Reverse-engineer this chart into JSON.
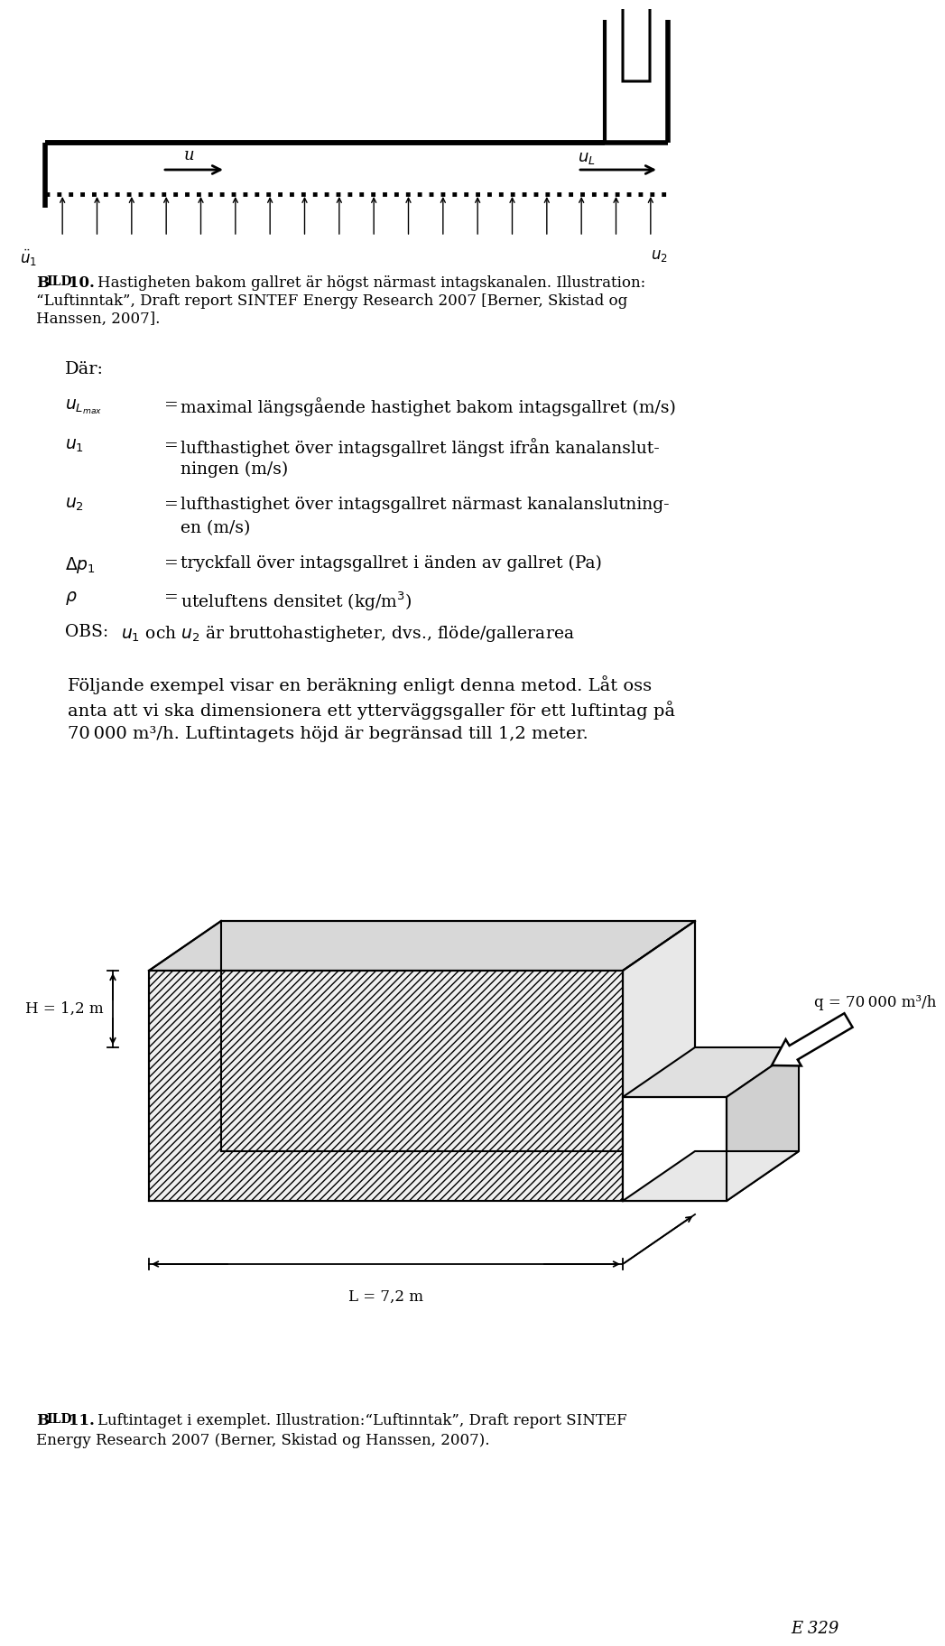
{
  "bg_color": "#ffffff",
  "text_color": "#000000",
  "fig_width": 9.6,
  "fig_height": 18.03,
  "bild10_line1": "Hastigheten bakom gallret är högst närmast intagskanalen. Illustration:",
  "bild10_line2": "“Luftinntak”, Draft report SINTEF Energy Research 2007 [Berner, Skistad og",
  "bild10_line3": "Hanssen, 2007].",
  "dar_text": "Där:",
  "def_ulmax_sym": "$u_{L_{max}}$",
  "def_ulmax_txt": "=maximal längsgående hastighet bakom intagsgallret (m/s)",
  "def_u1_sym": "$u_1$",
  "def_u1_txt1": "=lufthastighet över intagsgallret längst ifrån kanalanslut-",
  "def_u1_txt2": "ningen (m/s)",
  "def_u2_sym": "$u_2$",
  "def_u2_txt1": "=lufthastighet över intagsgallret närmast kanalanslutning-",
  "def_u2_txt2": "en (m/s)",
  "def_dp_sym": "$\\Delta p_1$",
  "def_dp_txt": "=tryckfall över intagsgallret i änden av gallret (Pa)",
  "def_rho_sym": "$\\rho$",
  "def_rho_txt": "=uteluftens densitet (kg/m$^3$)",
  "def_obs_sym": "OBS:",
  "def_obs_txt": "$u_1$ och $u_2$ är bruttohastigheter, dvs., flöde/gallerarea",
  "para_line1": "Följande exempel visar en beräkning enligt denna metod. Låt oss",
  "para_line2": "anta att vi ska dimensionera ett ytterväggsgaller för ett luftintag på",
  "para_line3": "70 000 m³/h. Luftintagets höjd är begränsad till 1,2 meter.",
  "H_label": "H = 1,2 m",
  "L_label": "L = 7,2 m",
  "q_label": "q = 70 000 m³/h",
  "bild11_line1": "Luftintaget i exemplet. Illustration:“Luftinntak”, Draft report SINTEF",
  "bild11_line2": "Energy Research 2007 (Berner, Skistad og Hanssen, 2007).",
  "page_label": "E 329"
}
